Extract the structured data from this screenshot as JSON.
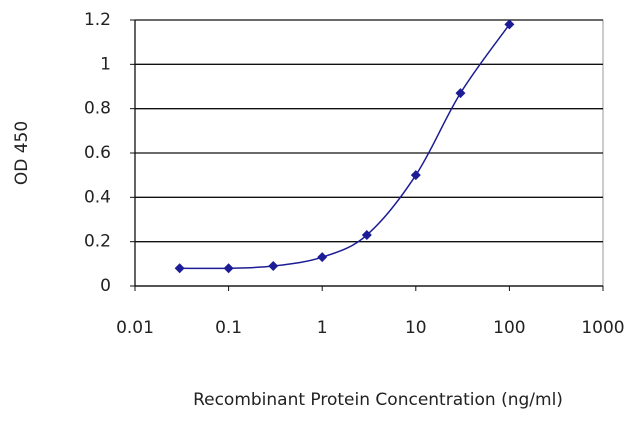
{
  "chart_data": {
    "type": "line",
    "xlabel": "Recombinant Protein Concentration (ng/ml)",
    "ylabel": "OD 450",
    "x": [
      0.03,
      0.1,
      0.3,
      1,
      3,
      10,
      30,
      100
    ],
    "series": [
      {
        "color": "#1c1c96",
        "values": [
          0.08,
          0.08,
          0.09,
          0.13,
          0.23,
          0.5,
          0.87,
          1.18
        ]
      }
    ],
    "xscale": "log",
    "xlim": [
      0.01,
      1000
    ],
    "xticks": [
      0.01,
      0.1,
      1,
      10,
      100,
      1000
    ],
    "ylim": [
      0,
      1.2
    ],
    "yticks": [
      0,
      0.2,
      0.4,
      0.6,
      0.8,
      1,
      1.2
    ],
    "grid": true
  }
}
